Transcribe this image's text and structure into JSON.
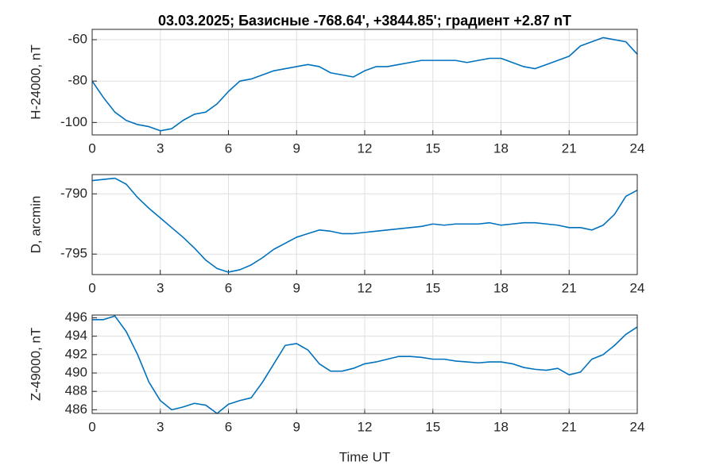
{
  "chart_data": [
    {
      "type": "line",
      "title": "03.03.2025;  Базисные  -768.64', +3844.85'; градиент +2.87 nT",
      "ylabel": "H-24000, nT",
      "x": [
        0,
        0.5,
        1,
        1.5,
        2,
        2.5,
        3,
        3.5,
        4,
        4.5,
        5,
        5.5,
        6,
        6.5,
        7,
        7.5,
        8,
        8.5,
        9,
        9.5,
        10,
        10.5,
        11,
        11.5,
        12,
        12.5,
        13,
        13.5,
        14,
        14.5,
        15,
        15.5,
        16,
        16.5,
        17,
        17.5,
        18,
        18.5,
        19,
        19.5,
        20,
        20.5,
        21,
        21.5,
        22,
        22.5,
        23,
        23.5,
        24
      ],
      "values": [
        -80,
        -88,
        -95,
        -99,
        -101,
        -102,
        -104,
        -103,
        -99,
        -96,
        -95,
        -91,
        -85,
        -80,
        -79,
        -77,
        -75,
        -74,
        -73,
        -72,
        -73,
        -76,
        -77,
        -78,
        -75,
        -73,
        -73,
        -72,
        -71,
        -70,
        -70,
        -70,
        -70,
        -71,
        -70,
        -69,
        -69,
        -71,
        -73,
        -74,
        -72,
        -70,
        -68,
        -63,
        -61,
        -59,
        -60,
        -61,
        -67
      ],
      "color": "#0072bd",
      "xlim": [
        0,
        24
      ],
      "xticks": [
        0,
        3,
        6,
        9,
        12,
        15,
        18,
        21,
        24
      ],
      "ylim": [
        -106,
        -55
      ],
      "yticks": [
        -100,
        -80,
        -60
      ],
      "grid": true
    },
    {
      "type": "line",
      "ylabel": "D, arcmin",
      "x": [
        0,
        0.5,
        1,
        1.5,
        2,
        2.5,
        3,
        3.5,
        4,
        4.5,
        5,
        5.5,
        6,
        6.5,
        7,
        7.5,
        8,
        8.5,
        9,
        9.5,
        10,
        10.5,
        11,
        11.5,
        12,
        12.5,
        13,
        13.5,
        14,
        14.5,
        15,
        15.5,
        16,
        16.5,
        17,
        17.5,
        18,
        18.5,
        19,
        19.5,
        20,
        20.5,
        21,
        21.5,
        22,
        22.5,
        23,
        23.5,
        24
      ],
      "values": [
        -788.9,
        -788.8,
        -788.7,
        -789.2,
        -790.3,
        -791.2,
        -792.0,
        -792.8,
        -793.6,
        -794.5,
        -795.5,
        -796.2,
        -796.5,
        -796.3,
        -795.9,
        -795.3,
        -794.6,
        -794.1,
        -793.6,
        -793.3,
        -793.0,
        -793.1,
        -793.3,
        -793.3,
        -793.2,
        -793.1,
        -793.0,
        -792.9,
        -792.8,
        -792.7,
        -792.5,
        -792.6,
        -792.5,
        -792.5,
        -792.5,
        -792.4,
        -792.6,
        -792.5,
        -792.4,
        -792.4,
        -792.5,
        -792.6,
        -792.8,
        -792.8,
        -793.0,
        -792.6,
        -791.7,
        -790.2,
        -789.7
      ],
      "color": "#0072bd",
      "xlim": [
        0,
        24
      ],
      "xticks": [
        0,
        3,
        6,
        9,
        12,
        15,
        18,
        21,
        24
      ],
      "ylim": [
        -796.7,
        -788.4
      ],
      "yticks": [
        -795,
        -790
      ],
      "grid": true
    },
    {
      "type": "line",
      "ylabel": "Z-49000, nT",
      "xlabel": "Time UT",
      "x": [
        0,
        0.5,
        1,
        1.5,
        2,
        2.5,
        3,
        3.5,
        4,
        4.5,
        5,
        5.5,
        6,
        6.5,
        7,
        7.5,
        8,
        8.5,
        9,
        9.5,
        10,
        10.5,
        11,
        11.5,
        12,
        12.5,
        13,
        13.5,
        14,
        14.5,
        15,
        15.5,
        16,
        16.5,
        17,
        17.5,
        18,
        18.5,
        19,
        19.5,
        20,
        20.5,
        21,
        21.5,
        22,
        22.5,
        23,
        23.5,
        24
      ],
      "values": [
        495.8,
        495.8,
        496.2,
        494.5,
        492,
        489,
        487,
        486,
        486.3,
        486.7,
        486.5,
        485.6,
        486.6,
        487,
        487.3,
        489,
        491,
        493,
        493.2,
        492.5,
        491,
        490.2,
        490.2,
        490.5,
        491,
        491.2,
        491.5,
        491.8,
        491.8,
        491.7,
        491.5,
        491.5,
        491.3,
        491.2,
        491.1,
        491.2,
        491.2,
        491,
        490.6,
        490.4,
        490.3,
        490.5,
        489.8,
        490.1,
        491.5,
        492,
        493,
        494.2,
        495
      ],
      "color": "#0072bd",
      "xlim": [
        0,
        24
      ],
      "xticks": [
        0,
        3,
        6,
        9,
        12,
        15,
        18,
        21,
        24
      ],
      "ylim": [
        485.6,
        496.3
      ],
      "yticks": [
        486,
        488,
        490,
        492,
        494,
        496
      ],
      "grid": true
    }
  ]
}
